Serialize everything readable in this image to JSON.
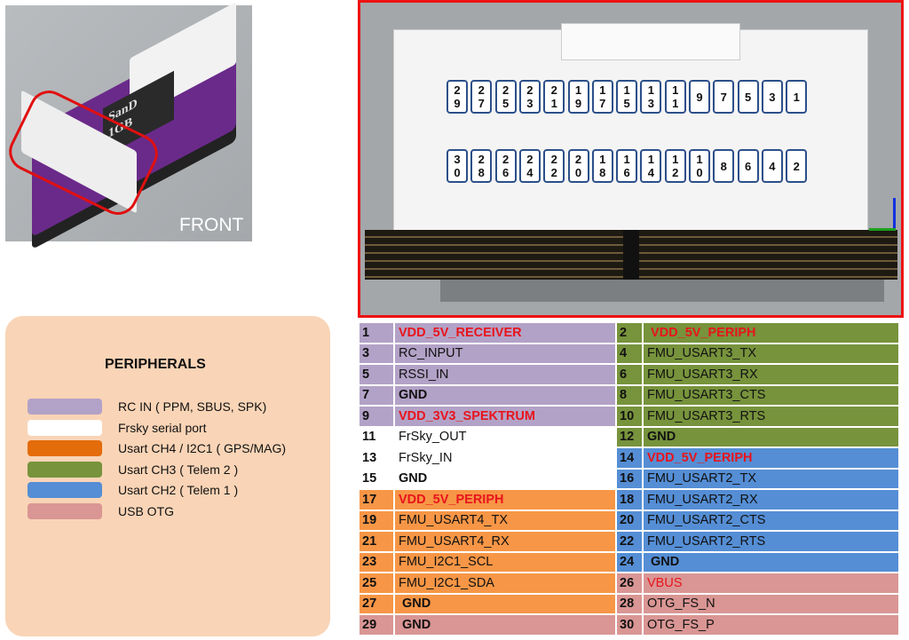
{
  "photo": {
    "front_label": "FRONT",
    "sd_label": "SanD 1GB"
  },
  "colors": {
    "rc_in": "#b3a2c7",
    "frsky": "#ffffff",
    "usart4": "#f79646",
    "usart3": "#77933c",
    "usart2": "#558ed5",
    "usb_otg": "#d99694",
    "legend_usart4": "#e46c0a",
    "highlight": "#e01010"
  },
  "connector": {
    "top_row": [
      "29",
      "27",
      "25",
      "23",
      "21",
      "19",
      "17",
      "15",
      "13",
      "11",
      "9",
      "7",
      "5",
      "3",
      "1"
    ],
    "bottom_row": [
      "30",
      "28",
      "26",
      "24",
      "22",
      "20",
      "18",
      "16",
      "14",
      "12",
      "10",
      "8",
      "6",
      "4",
      "2"
    ]
  },
  "legend": {
    "title": "PERIPHERALS",
    "items": [
      {
        "label": "RC IN ( PPM, SBUS, SPK)",
        "color": "#b3a2c7"
      },
      {
        "label": "Frsky serial port",
        "color": "#ffffff"
      },
      {
        "label": "Usart CH4 / I2C1 ( GPS/MAG)",
        "color": "#e46c0a"
      },
      {
        "label": "Usart CH3 ( Telem  2 )",
        "color": "#77933c"
      },
      {
        "label": "Usart CH2 ( Telem  1 )",
        "color": "#558ed5"
      },
      {
        "label": "USB OTG",
        "color": "#d99694"
      }
    ]
  },
  "pins": [
    [
      {
        "n": "1",
        "name": "VDD_5V_RECEIVER",
        "style": "red",
        "color": "#b3a2c7"
      },
      {
        "n": "2",
        "name": " VDD_5V_PERIPH",
        "style": "red",
        "color": "#77933c"
      }
    ],
    [
      {
        "n": "3",
        "name": "RC_INPUT",
        "style": "",
        "color": "#b3a2c7"
      },
      {
        "n": "4",
        "name": "FMU_USART3_TX",
        "style": "",
        "color": "#77933c"
      }
    ],
    [
      {
        "n": "5",
        "name": "RSSI_IN",
        "style": "",
        "color": "#b3a2c7"
      },
      {
        "n": "6",
        "name": "FMU_USART3_RX",
        "style": "",
        "color": "#77933c"
      }
    ],
    [
      {
        "n": "7",
        "name": "GND",
        "style": "bold",
        "color": "#b3a2c7"
      },
      {
        "n": "8",
        "name": "FMU_USART3_CTS",
        "style": "",
        "color": "#77933c"
      }
    ],
    [
      {
        "n": "9",
        "name": "VDD_3V3_SPEKTRUM",
        "style": "red",
        "color": "#b3a2c7"
      },
      {
        "n": "10",
        "name": "FMU_USART3_RTS",
        "style": "",
        "color": "#77933c"
      }
    ],
    [
      {
        "n": "11",
        "name": "FrSky_OUT",
        "style": "",
        "color": "#ffffff"
      },
      {
        "n": "12",
        "name": "GND",
        "style": "bold",
        "color": "#77933c"
      }
    ],
    [
      {
        "n": "13",
        "name": "FrSky_IN",
        "style": "",
        "color": "#ffffff"
      },
      {
        "n": "14",
        "name": "VDD_5V_PERIPH",
        "style": "red",
        "color": "#558ed5"
      }
    ],
    [
      {
        "n": "15",
        "name": "GND",
        "style": "bold",
        "color": "#ffffff"
      },
      {
        "n": "16",
        "name": "FMU_USART2_TX",
        "style": "",
        "color": "#558ed5"
      }
    ],
    [
      {
        "n": "17",
        "name": "VDD_5V_PERIPH",
        "style": "red",
        "color": "#f79646"
      },
      {
        "n": "18",
        "name": "FMU_USART2_RX",
        "style": "",
        "color": "#558ed5"
      }
    ],
    [
      {
        "n": "19",
        "name": "FMU_USART4_TX",
        "style": "",
        "color": "#f79646"
      },
      {
        "n": "20",
        "name": "FMU_USART2_CTS",
        "style": "",
        "color": "#558ed5"
      }
    ],
    [
      {
        "n": "21",
        "name": "FMU_USART4_RX",
        "style": "",
        "color": "#f79646"
      },
      {
        "n": "22",
        "name": "FMU_USART2_RTS",
        "style": "",
        "color": "#558ed5"
      }
    ],
    [
      {
        "n": "23",
        "name": "FMU_I2C1_SCL",
        "style": "",
        "color": "#f79646"
      },
      {
        "n": "24",
        "name": " GND",
        "style": "bold",
        "color": "#558ed5"
      }
    ],
    [
      {
        "n": "25",
        "name": "FMU_I2C1_SDA",
        "style": "",
        "color": "#f79646"
      },
      {
        "n": "26",
        "name": "VBUS",
        "style": "redthin",
        "color": "#d99694"
      }
    ],
    [
      {
        "n": "27",
        "name": " GND",
        "style": "bold",
        "color": "#f79646"
      },
      {
        "n": "28",
        "name": "OTG_FS_N",
        "style": "",
        "color": "#d99694"
      }
    ],
    [
      {
        "n": "29",
        "name": " GND",
        "style": "bold",
        "color": "#d99694"
      },
      {
        "n": "30",
        "name": "OTG_FS_P",
        "style": "",
        "color": "#d99694"
      }
    ]
  ]
}
